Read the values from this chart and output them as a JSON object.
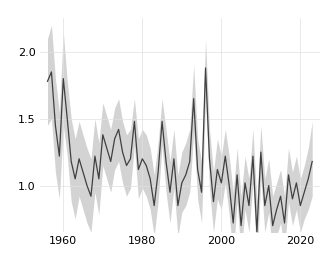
{
  "years": [
    1956,
    1957,
    1958,
    1959,
    1960,
    1961,
    1962,
    1963,
    1964,
    1965,
    1966,
    1967,
    1968,
    1969,
    1970,
    1971,
    1972,
    1973,
    1974,
    1975,
    1976,
    1977,
    1978,
    1979,
    1980,
    1981,
    1982,
    1983,
    1984,
    1985,
    1986,
    1987,
    1988,
    1989,
    1990,
    1991,
    1992,
    1993,
    1994,
    1995,
    1996,
    1997,
    1998,
    1999,
    2000,
    2001,
    2002,
    2003,
    2004,
    2005,
    2006,
    2007,
    2008,
    2009,
    2010,
    2011,
    2012,
    2013,
    2014,
    2015,
    2016,
    2017,
    2018,
    2019,
    2020,
    2021,
    2022,
    2023
  ],
  "values": [
    1.78,
    1.85,
    1.45,
    1.22,
    1.8,
    1.5,
    1.18,
    1.05,
    1.2,
    1.1,
    1.0,
    0.92,
    1.22,
    1.05,
    1.38,
    1.28,
    1.18,
    1.35,
    1.42,
    1.25,
    1.15,
    1.2,
    1.48,
    1.12,
    1.2,
    1.15,
    1.05,
    0.85,
    1.1,
    1.48,
    1.18,
    0.95,
    1.2,
    0.85,
    1.02,
    1.08,
    1.18,
    1.65,
    1.12,
    0.95,
    1.88,
    1.2,
    0.88,
    1.12,
    1.02,
    1.22,
    1.0,
    0.72,
    1.08,
    0.7,
    1.02,
    0.85,
    1.22,
    0.65,
    1.25,
    0.85,
    1.0,
    0.7,
    0.82,
    0.92,
    0.72,
    1.08,
    0.9,
    1.02,
    0.85,
    0.95,
    1.05,
    1.18
  ],
  "upper": [
    2.1,
    2.2,
    1.8,
    1.55,
    2.15,
    1.78,
    1.5,
    1.35,
    1.48,
    1.38,
    1.28,
    1.2,
    1.5,
    1.32,
    1.62,
    1.52,
    1.42,
    1.58,
    1.65,
    1.48,
    1.38,
    1.42,
    1.65,
    1.35,
    1.42,
    1.38,
    1.28,
    1.08,
    1.32,
    1.65,
    1.42,
    1.18,
    1.42,
    1.08,
    1.25,
    1.32,
    1.42,
    1.9,
    1.35,
    1.18,
    2.1,
    1.42,
    1.1,
    1.35,
    1.22,
    1.42,
    1.22,
    0.95,
    1.28,
    0.92,
    1.22,
    1.05,
    1.42,
    0.88,
    1.45,
    1.05,
    1.2,
    0.92,
    1.02,
    1.12,
    0.92,
    1.28,
    1.1,
    1.22,
    1.05,
    1.15,
    1.28,
    1.48
  ],
  "lower": [
    1.45,
    1.5,
    1.1,
    0.9,
    1.45,
    1.22,
    0.88,
    0.75,
    0.92,
    0.82,
    0.72,
    0.65,
    0.95,
    0.78,
    1.15,
    1.05,
    0.95,
    1.12,
    1.18,
    1.02,
    0.92,
    0.98,
    1.3,
    0.9,
    0.98,
    0.92,
    0.82,
    0.62,
    0.88,
    1.3,
    0.95,
    0.72,
    0.98,
    0.62,
    0.8,
    0.85,
    0.95,
    1.4,
    0.9,
    0.72,
    1.65,
    0.98,
    0.65,
    0.9,
    0.82,
    1.02,
    0.78,
    0.48,
    0.88,
    0.48,
    0.82,
    0.65,
    1.02,
    0.42,
    1.05,
    0.65,
    0.8,
    0.48,
    0.62,
    0.72,
    0.52,
    0.88,
    0.7,
    0.82,
    0.65,
    0.75,
    0.82,
    0.92
  ],
  "line_color": "#404040",
  "band_color": "#b0b0b0",
  "band_alpha": 0.55,
  "bg_color": "#ffffff",
  "grid_color": "#e0e0e0",
  "xlim": [
    1954,
    2025
  ],
  "ylim": [
    0.65,
    2.25
  ],
  "xticks": [
    1960,
    1980,
    2000,
    2020
  ],
  "yticks": [
    1.0,
    1.5,
    2.0
  ],
  "tick_fontsize": 8,
  "line_width": 0.9
}
